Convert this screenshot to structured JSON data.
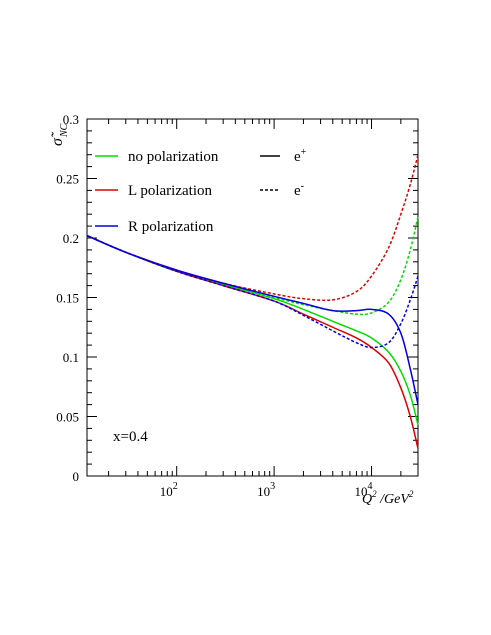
{
  "chart_data": {
    "type": "line",
    "ylabel": "σ̃",
    "ylabel_sub": "NC",
    "xlabel": "Q²/GeV²",
    "xlabel_parts": {
      "q": "Q",
      "sup": "2",
      "mid": " /GeV",
      "sup2": "2"
    },
    "annotation": "x=0.4",
    "x_scale": "log",
    "xlim": [
      12,
      30000
    ],
    "ylim": [
      0,
      0.3
    ],
    "x_ticks": [
      {
        "value": 100,
        "base": "10",
        "exp": "2"
      },
      {
        "value": 1000,
        "base": "10",
        "exp": "3"
      },
      {
        "value": 10000,
        "base": "10",
        "exp": "4"
      }
    ],
    "y_ticks": [
      {
        "value": 0,
        "label": "0"
      },
      {
        "value": 0.05,
        "label": "0.05"
      },
      {
        "value": 0.1,
        "label": "0.1"
      },
      {
        "value": 0.15,
        "label": "0.15"
      },
      {
        "value": 0.2,
        "label": "0.2"
      },
      {
        "value": 0.25,
        "label": "0.25"
      },
      {
        "value": 0.3,
        "label": "0.3"
      }
    ],
    "legend": {
      "placement": "top-left",
      "color_entries": [
        {
          "label": "no polarization",
          "color": "#00dd00"
        },
        {
          "label": "L polarization",
          "color": "#dd0000"
        },
        {
          "label": "R polarization",
          "color": "#0000dd"
        }
      ],
      "style_entries": [
        {
          "label_base": "e",
          "label_sup": "+",
          "dash": "solid"
        },
        {
          "label_base": "e",
          "label_sup": "-",
          "dash": "dashed"
        }
      ]
    },
    "series": [
      {
        "polarization": "no polarization",
        "lepton": "e+",
        "color": "#00dd00",
        "dash": "solid",
        "x": [
          12,
          30,
          100,
          300,
          1000,
          2000,
          4000,
          7000,
          10000,
          15000,
          20000,
          25000,
          30000
        ],
        "y": [
          0.202,
          0.188,
          0.172,
          0.161,
          0.149,
          0.14,
          0.13,
          0.122,
          0.116,
          0.104,
          0.088,
          0.068,
          0.043
        ]
      },
      {
        "polarization": "no polarization",
        "lepton": "e-",
        "color": "#00dd00",
        "dash": "dashed",
        "x": [
          12,
          30,
          100,
          300,
          1000,
          2000,
          4000,
          7000,
          10000,
          15000,
          20000,
          25000,
          30000
        ],
        "y": [
          0.202,
          0.188,
          0.172,
          0.161,
          0.15,
          0.144,
          0.139,
          0.136,
          0.137,
          0.146,
          0.165,
          0.19,
          0.218
        ]
      },
      {
        "polarization": "L polarization",
        "lepton": "e+",
        "color": "#dd0000",
        "dash": "solid",
        "x": [
          12,
          30,
          100,
          300,
          1000,
          2000,
          4000,
          7000,
          10000,
          15000,
          20000,
          25000,
          30000
        ],
        "y": [
          0.202,
          0.188,
          0.172,
          0.16,
          0.147,
          0.136,
          0.125,
          0.116,
          0.108,
          0.095,
          0.074,
          0.05,
          0.023
        ]
      },
      {
        "polarization": "L polarization",
        "lepton": "e-",
        "color": "#dd0000",
        "dash": "dashed",
        "x": [
          12,
          30,
          100,
          300,
          1000,
          2000,
          4000,
          7000,
          10000,
          15000,
          20000,
          25000,
          30000
        ],
        "y": [
          0.202,
          0.188,
          0.173,
          0.162,
          0.153,
          0.149,
          0.148,
          0.155,
          0.168,
          0.192,
          0.22,
          0.245,
          0.27
        ]
      },
      {
        "polarization": "R polarization",
        "lepton": "e+",
        "color": "#0000dd",
        "dash": "solid",
        "x": [
          12,
          30,
          100,
          300,
          1000,
          2000,
          4000,
          7000,
          10000,
          15000,
          20000,
          25000,
          30000
        ],
        "y": [
          0.202,
          0.188,
          0.173,
          0.162,
          0.151,
          0.145,
          0.139,
          0.139,
          0.14,
          0.136,
          0.12,
          0.09,
          0.06
        ]
      },
      {
        "polarization": "R polarization",
        "lepton": "e-",
        "color": "#0000dd",
        "dash": "dashed",
        "x": [
          12,
          30,
          100,
          300,
          1000,
          2000,
          4000,
          7000,
          10000,
          15000,
          20000,
          25000,
          30000
        ],
        "y": [
          0.202,
          0.188,
          0.172,
          0.16,
          0.147,
          0.135,
          0.122,
          0.112,
          0.108,
          0.112,
          0.128,
          0.148,
          0.168
        ]
      }
    ]
  }
}
